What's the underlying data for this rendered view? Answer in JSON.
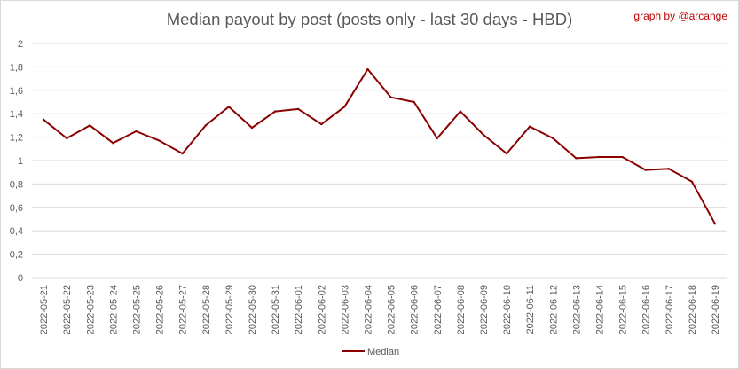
{
  "chart_data": {
    "type": "line",
    "title": "Median payout by post (posts only - last 30 days - HBD)",
    "credit": "graph by @arcange",
    "xlabel": "",
    "ylabel": "",
    "ylim": [
      0,
      2
    ],
    "yticks": [
      "0",
      "0,2",
      "0,4",
      "0,6",
      "0,8",
      "1",
      "1,2",
      "1,4",
      "1,6",
      "1,8",
      "2"
    ],
    "grid": true,
    "legend_position": "bottom",
    "categories": [
      "2022-05-21",
      "2022-05-22",
      "2022-05-23",
      "2022-05-24",
      "2022-05-25",
      "2022-05-26",
      "2022-05-27",
      "2022-05-28",
      "2022-05-29",
      "2022-05-30",
      "2022-05-31",
      "2022-06-01",
      "2022-06-02",
      "2022-06-03",
      "2022-06-04",
      "2022-06-05",
      "2022-06-06",
      "2022-06-07",
      "2022-06-08",
      "2022-06-09",
      "2022-06-10",
      "2022-06-11",
      "2022-06-12",
      "2022-06-13",
      "2022-06-14",
      "2022-06-15",
      "2022-06-16",
      "2022-06-17",
      "2022-06-18",
      "2022-06-19"
    ],
    "series": [
      {
        "name": "Median",
        "color": "#8b0000",
        "values": [
          1.35,
          1.19,
          1.3,
          1.15,
          1.25,
          1.17,
          1.06,
          1.3,
          1.46,
          1.28,
          1.42,
          1.44,
          1.31,
          1.46,
          1.78,
          1.54,
          1.5,
          1.19,
          1.42,
          1.22,
          1.06,
          1.29,
          1.19,
          1.02,
          1.03,
          1.03,
          0.92,
          0.93,
          0.82,
          0.46
        ]
      }
    ]
  }
}
